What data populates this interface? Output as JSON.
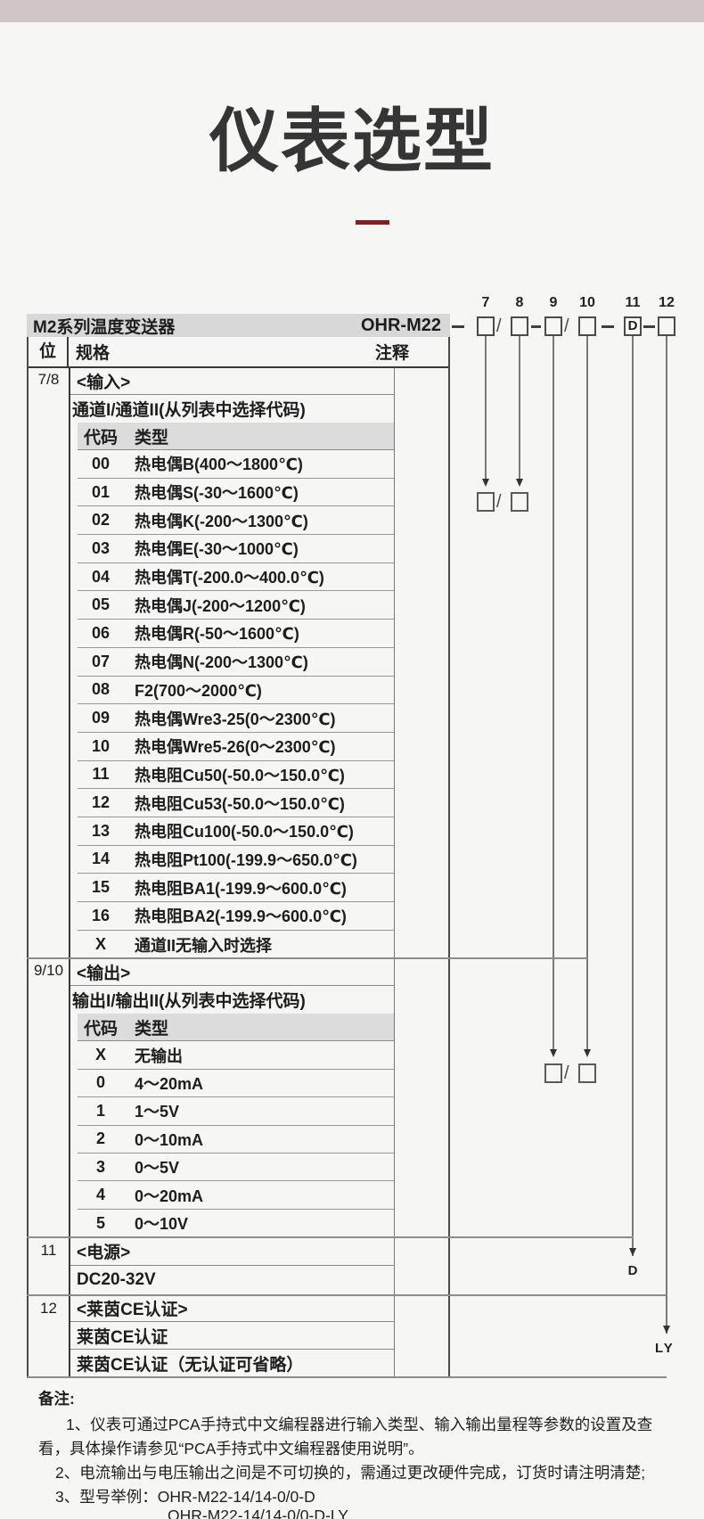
{
  "title": "仪表选型",
  "band": {
    "series": "M2系列温度变送器",
    "model": "OHR-M22"
  },
  "diagram": {
    "digits": [
      "7",
      "8",
      "9",
      "10",
      "11",
      "12"
    ],
    "box11_letter": "D",
    "slash": "/",
    "annotation_d": "D",
    "annotation_ly": "LY"
  },
  "thead": {
    "bit": "位",
    "spec": "规格",
    "note": "注释"
  },
  "sections": {
    "s1": {
      "bit": "7/8",
      "title": "<输入>",
      "subtitle": "通道I/通道II(从列表中选择代码)",
      "col_code": "代码",
      "col_type": "类型",
      "rows": [
        {
          "code": "00",
          "type": "热电偶B(400～1800℃)"
        },
        {
          "code": "01",
          "type": "热电偶S(-30～1600℃)"
        },
        {
          "code": "02",
          "type": "热电偶K(-200～1300℃)"
        },
        {
          "code": "03",
          "type": "热电偶E(-30～1000℃)"
        },
        {
          "code": "04",
          "type": "热电偶T(-200.0～400.0℃)"
        },
        {
          "code": "05",
          "type": "热电偶J(-200～1200℃)"
        },
        {
          "code": "06",
          "type": "热电偶R(-50～1600℃)"
        },
        {
          "code": "07",
          "type": "热电偶N(-200～1300℃)"
        },
        {
          "code": "08",
          "type": "F2(700～2000℃)"
        },
        {
          "code": "09",
          "type": "热电偶Wre3-25(0～2300℃)"
        },
        {
          "code": "10",
          "type": "热电偶Wre5-26(0～2300℃)"
        },
        {
          "code": "11",
          "type": "热电阻Cu50(-50.0～150.0℃)"
        },
        {
          "code": "12",
          "type": "热电阻Cu53(-50.0～150.0℃)"
        },
        {
          "code": "13",
          "type": "热电阻Cu100(-50.0～150.0℃)"
        },
        {
          "code": "14",
          "type": "热电阻Pt100(-199.9～650.0℃)"
        },
        {
          "code": "15",
          "type": "热电阻BA1(-199.9～600.0℃)"
        },
        {
          "code": "16",
          "type": "热电阻BA2(-199.9～600.0℃)"
        },
        {
          "code": "X",
          "type": "通道II无输入时选择"
        }
      ]
    },
    "s2": {
      "bit": "9/10",
      "title": "<输出>",
      "subtitle": "输出I/输出II(从列表中选择代码)",
      "col_code": "代码",
      "col_type": "类型",
      "rows": [
        {
          "code": "X",
          "type": "无输出"
        },
        {
          "code": "0",
          "type": "4～20mA"
        },
        {
          "code": "1",
          "type": "1～5V"
        },
        {
          "code": "2",
          "type": "0～10mA"
        },
        {
          "code": "3",
          "type": "0～5V"
        },
        {
          "code": "4",
          "type": "0～20mA"
        },
        {
          "code": "5",
          "type": "0～10V"
        }
      ]
    },
    "s3": {
      "bit": "11",
      "line1": "<电源>",
      "line2": "DC20-32V"
    },
    "s4": {
      "bit": "12",
      "line1": "<莱茵CE认证>",
      "line2": "莱茵CE认证",
      "line3": "莱茵CE认证（无认证可省略）"
    }
  },
  "notes": {
    "label": "备注:",
    "n1a": "1、仪表可通过PCA手持式中文编程器进行输入类型、输入输出量程等参数的设置及查",
    "n1b": "看，具体操作请参见“PCA手持式中文编程器使用说明”。",
    "n2": "2、电流输出与电压输出之间是不可切换的，需通过更改硬件完成，订货时请注明清楚;",
    "n3": "3、型号举例：OHR-M22-14/14-0/0-D",
    "n3b": "OHR-M22-14/14-0/0-D-LY"
  },
  "colors": {
    "accent_red": "#8a1e1e",
    "topbar_bg": "#cec7c5",
    "band_bg": "#d8d8d8",
    "subheader_bg": "#dcdcdc"
  }
}
